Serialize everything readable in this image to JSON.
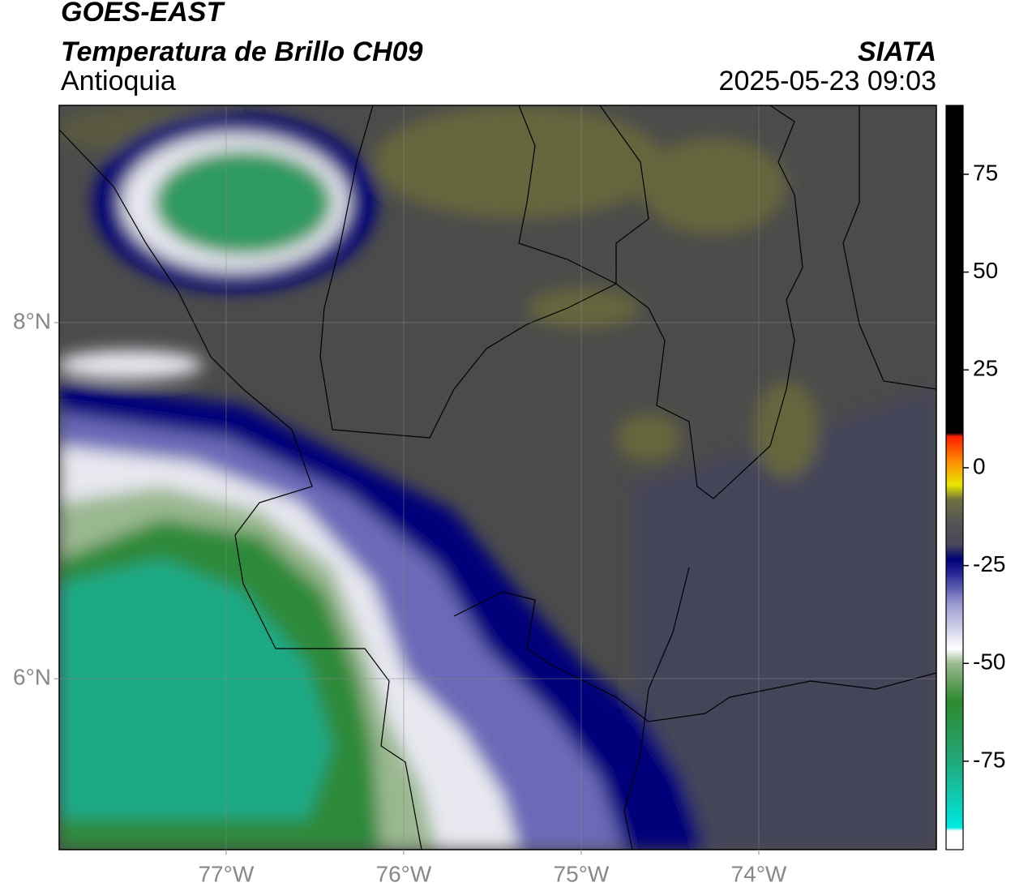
{
  "header": {
    "title": "GOES-EAST",
    "subtitle": "Temperatura de Brillo CH09",
    "region": "Antioquia",
    "source": "SIATA",
    "datetime": "2025-05-23 09:03"
  },
  "map": {
    "lonlim": [
      -77.94,
      -73.0
    ],
    "latlim": [
      5.04,
      9.22
    ],
    "lonticks": [
      {
        "value": -77,
        "label": "77°W"
      },
      {
        "value": -76,
        "label": "76°W"
      },
      {
        "value": -75,
        "label": "75°W"
      },
      {
        "value": -74,
        "label": "74°W"
      }
    ],
    "latticks": [
      {
        "value": 8,
        "label": "8°N"
      },
      {
        "value": 6,
        "label": "6°N"
      }
    ],
    "grid": true
  },
  "colorbar": {
    "lim": [
      -97.6,
      92.6
    ],
    "ticks": [
      75,
      50,
      25,
      0,
      -25,
      -50,
      -75
    ]
  }
}
